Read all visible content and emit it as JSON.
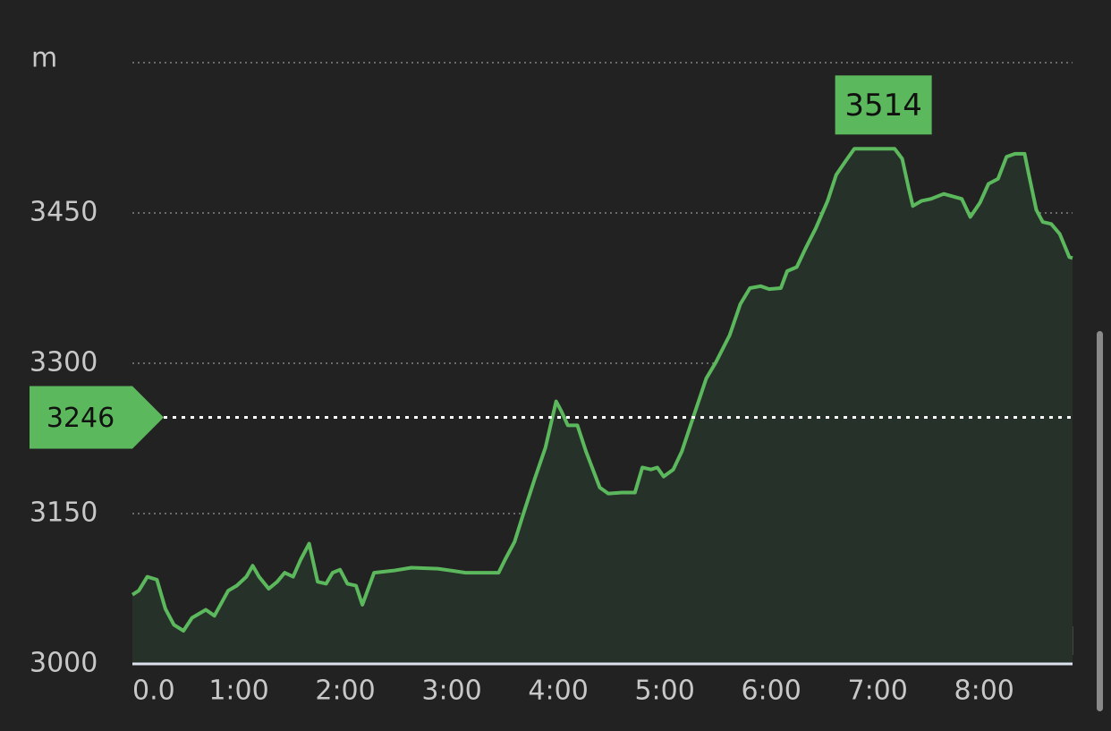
{
  "chart_data": {
    "type": "area",
    "y_unit": "m",
    "color": "#5cb85c",
    "x": [
      0,
      0.06,
      0.14,
      0.23,
      0.31,
      0.39,
      0.48,
      0.56,
      0.69,
      0.77,
      0.9,
      0.98,
      1.07,
      1.13,
      1.19,
      1.28,
      1.36,
      1.43,
      1.51,
      1.58,
      1.66,
      1.74,
      1.82,
      1.88,
      1.95,
      2.02,
      2.1,
      2.16,
      2.27,
      2.45,
      2.62,
      2.87,
      3.13,
      3.44,
      3.5,
      3.59,
      3.67,
      3.78,
      3.88,
      3.98,
      4.03,
      4.09,
      4.18,
      4.26,
      4.39,
      4.47,
      4.6,
      4.72,
      4.79,
      4.87,
      4.93,
      4.99,
      5.08,
      5.16,
      5.27,
      5.39,
      5.48,
      5.61,
      5.71,
      5.8,
      5.9,
      5.98,
      6.09,
      6.15,
      6.24,
      6.32,
      6.42,
      6.53,
      6.61,
      6.7,
      6.78,
      6.91,
      7.08,
      7.16,
      7.23,
      7.29,
      7.33,
      7.41,
      7.5,
      7.62,
      7.79,
      7.87,
      7.96,
      8.04,
      8.13,
      8.21,
      8.29,
      8.38,
      8.42,
      8.49,
      8.55,
      8.63,
      8.71,
      8.8,
      8.83
    ],
    "values": [
      3069,
      3073,
      3087,
      3084,
      3055,
      3039,
      3033,
      3046,
      3054,
      3048,
      3073,
      3078,
      3087,
      3098,
      3087,
      3075,
      3082,
      3091,
      3087,
      3104,
      3120,
      3082,
      3080,
      3091,
      3094,
      3080,
      3078,
      3059,
      3091,
      3093,
      3096,
      3095,
      3091,
      3091,
      3104,
      3122,
      3149,
      3185,
      3216,
      3262,
      3252,
      3238,
      3238,
      3212,
      3176,
      3170,
      3171,
      3171,
      3196,
      3194,
      3196,
      3187,
      3194,
      3212,
      3247,
      3285,
      3301,
      3328,
      3359,
      3375,
      3377,
      3374,
      3375,
      3392,
      3396,
      3414,
      3435,
      3462,
      3488,
      3502,
      3514,
      3514,
      3514,
      3514,
      3504,
      3475,
      3457,
      3462,
      3464,
      3469,
      3464,
      3446,
      3460,
      3479,
      3484,
      3506,
      3509,
      3509,
      3488,
      3453,
      3441,
      3439,
      3429,
      3406,
      3405
    ],
    "xlim": [
      0,
      8.83
    ],
    "ylim": [
      3000,
      3600
    ],
    "xticks": [
      {
        "value": 0,
        "label": "0.0"
      },
      {
        "value": 1,
        "label": "1:00"
      },
      {
        "value": 2,
        "label": "2:00"
      },
      {
        "value": 3,
        "label": "3:00"
      },
      {
        "value": 4,
        "label": "4:00"
      },
      {
        "value": 5,
        "label": "5:00"
      },
      {
        "value": 6,
        "label": "6:00"
      },
      {
        "value": 7,
        "label": "7:00"
      },
      {
        "value": 8,
        "label": "8:00"
      }
    ],
    "yticks": [
      3000,
      3150,
      3300,
      3450
    ],
    "peak_label": 3514,
    "marker_value": 3246,
    "grid": true
  }
}
